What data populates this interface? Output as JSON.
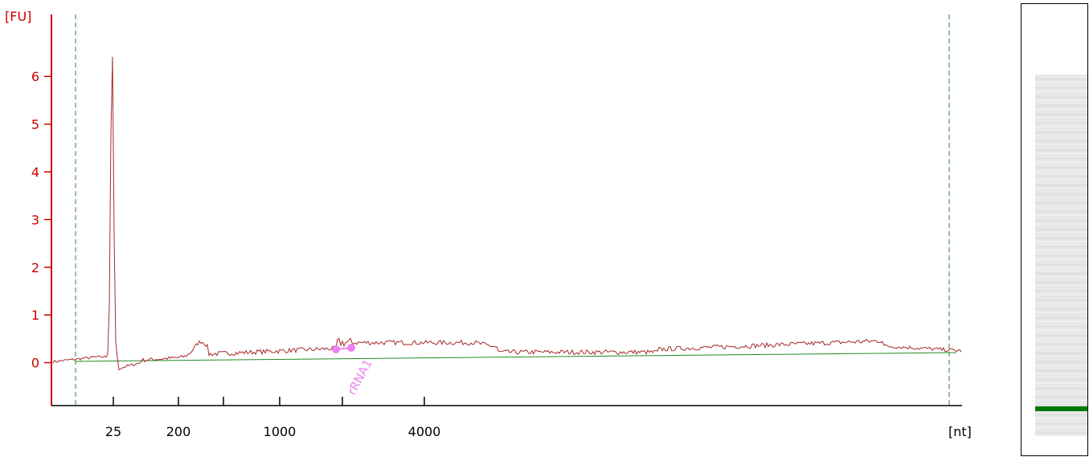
{
  "chart_data": {
    "type": "line",
    "y_unit_label": "[FU]",
    "x_unit_label": "[nt]",
    "ylim": [
      -0.9,
      7.3
    ],
    "y_ticks": [
      0,
      1,
      2,
      3,
      4,
      5,
      6
    ],
    "x_ticks": [
      "25",
      "200",
      "",
      "1000",
      "",
      "4000"
    ],
    "annotations": [
      {
        "label": "rRNA1",
        "color": "#ee82ee"
      }
    ],
    "colors": {
      "axis": "#cc0000",
      "trace": "#a52a2a",
      "baseline": "#228b22",
      "marker": "#ee82ee",
      "gel_marker": "#007a00"
    },
    "peak": {
      "fu": 6.65
    },
    "grid": false
  }
}
